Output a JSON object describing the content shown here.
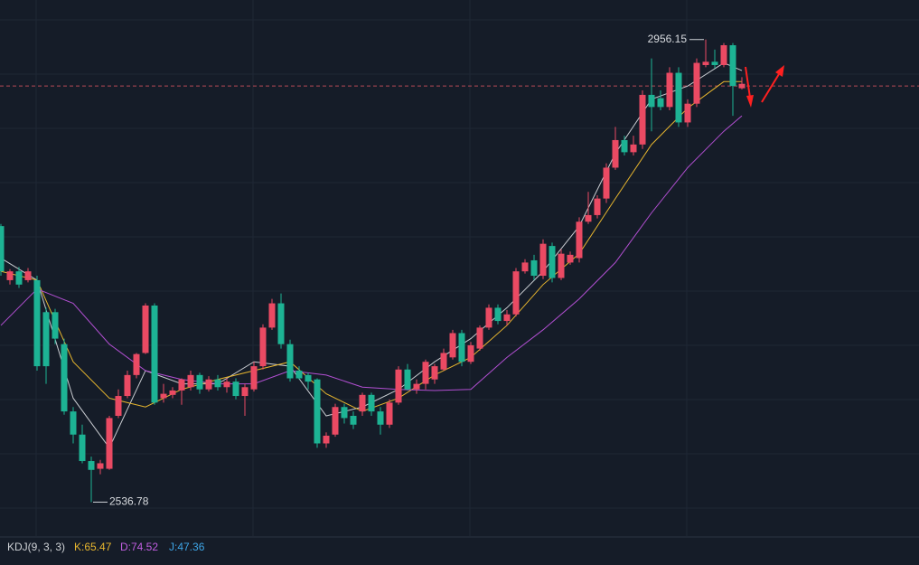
{
  "chart_data": {
    "type": "candlestick",
    "up_color": "#ea4a63",
    "down_color": "#1db394",
    "ylim": [
      2506,
      2992
    ],
    "open": [
      2787,
      2738,
      2746,
      2738,
      2738,
      2709,
      2709,
      2680,
      2619,
      2598,
      2574,
      2567,
      2567,
      2615,
      2633,
      2652,
      2672,
      2715,
      2631,
      2634,
      2638,
      2641,
      2652,
      2639,
      2648,
      2641,
      2646,
      2633,
      2639,
      2660,
      2695,
      2717,
      2680,
      2656,
      2652,
      2648,
      2590,
      2598,
      2623,
      2615,
      2619,
      2634,
      2619,
      2607,
      2627,
      2657,
      2639,
      2644,
      2648,
      2657,
      2668,
      2690,
      2664,
      2676,
      2695,
      2713,
      2701,
      2707,
      2746,
      2756,
      2742,
      2769,
      2740,
      2754,
      2758,
      2791,
      2797,
      2812,
      2840,
      2865,
      2854,
      2861,
      2906,
      2903,
      2895,
      2926,
      2881,
      2898,
      2933,
      2936,
      2933,
      2951,
      2912
    ],
    "high": [
      2789,
      2748,
      2750,
      2749,
      2742,
      2713,
      2712,
      2685,
      2623,
      2607,
      2578,
      2575,
      2615,
      2639,
      2656,
      2672,
      2717,
      2717,
      2644,
      2641,
      2649,
      2656,
      2654,
      2651,
      2652,
      2649,
      2649,
      2644,
      2664,
      2698,
      2721,
      2726,
      2684,
      2660,
      2654,
      2649,
      2600,
      2626,
      2626,
      2619,
      2636,
      2636,
      2623,
      2630,
      2660,
      2662,
      2648,
      2666,
      2662,
      2676,
      2693,
      2693,
      2682,
      2697,
      2716,
      2716,
      2711,
      2749,
      2757,
      2761,
      2775,
      2772,
      2766,
      2764,
      2795,
      2818,
      2815,
      2844,
      2877,
      2869,
      2869,
      2910,
      2939,
      2910,
      2931,
      2931,
      2902,
      2939,
      2956.15,
      2947,
      2953,
      2953,
      2922
    ],
    "low": [
      2742,
      2734,
      2731,
      2736,
      2656,
      2644,
      2680,
      2616,
      2590,
      2572,
      2536.78,
      2562,
      2566,
      2613,
      2631,
      2649,
      2671,
      2625,
      2627,
      2631,
      2625,
      2638,
      2635,
      2637,
      2638,
      2636,
      2630,
      2615,
      2637,
      2657,
      2693,
      2676,
      2646,
      2648,
      2639,
      2586,
      2586,
      2596,
      2608,
      2603,
      2615,
      2615,
      2598,
      2604,
      2625,
      2638,
      2635,
      2639,
      2644,
      2656,
      2666,
      2660,
      2662,
      2674,
      2693,
      2698,
      2697,
      2705,
      2744,
      2738,
      2739,
      2736,
      2738,
      2752,
      2754,
      2789,
      2794,
      2808,
      2838,
      2851,
      2851,
      2857,
      2873,
      2892,
      2892,
      2877,
      2877,
      2895,
      2931,
      2930,
      2931,
      2887,
      2911
    ],
    "close": [
      2746,
      2746,
      2734,
      2746,
      2660,
      2660,
      2685,
      2619,
      2598,
      2574,
      2566,
      2572,
      2613,
      2633,
      2652,
      2671,
      2715,
      2627,
      2635,
      2638,
      2648,
      2652,
      2639,
      2648,
      2641,
      2646,
      2633,
      2641,
      2660,
      2695,
      2717,
      2680,
      2649,
      2649,
      2646,
      2590,
      2597,
      2623,
      2613,
      2607,
      2634,
      2619,
      2607,
      2627,
      2657,
      2639,
      2644,
      2664,
      2660,
      2672,
      2690,
      2664,
      2679,
      2695,
      2713,
      2701,
      2707,
      2746,
      2754,
      2742,
      2771,
      2740,
      2762,
      2761,
      2791,
      2797,
      2812,
      2840,
      2865,
      2854,
      2861,
      2906,
      2895,
      2895,
      2926,
      2881,
      2898,
      2935,
      2936,
      2933,
      2951,
      2914,
      2916
    ],
    "lines": [
      {
        "color": "#c9ccd1",
        "x": [
          0,
          4,
          8,
          12,
          16,
          20,
          24,
          28,
          32,
          36,
          40,
          44,
          48,
          52,
          56,
          60,
          64,
          68,
          72,
          76,
          80,
          82
        ],
        "values": [
          2758,
          2738,
          2631,
          2586,
          2656,
          2644,
          2644,
          2664,
          2660,
          2615,
          2623,
          2639,
          2664,
          2685,
          2713,
          2746,
          2787,
          2853,
          2902,
          2914,
          2935,
          2928
        ]
      },
      {
        "color": "#e6b52e",
        "x": [
          0,
          4,
          8,
          12,
          16,
          20,
          24,
          28,
          32,
          36,
          40,
          44,
          48,
          52,
          56,
          60,
          64,
          68,
          72,
          76,
          80,
          82
        ],
        "values": [
          2746,
          2738,
          2664,
          2631,
          2623,
          2639,
          2648,
          2656,
          2664,
          2635,
          2619,
          2631,
          2652,
          2668,
          2697,
          2734,
          2762,
          2812,
          2861,
          2894,
          2918,
          2918
        ]
      },
      {
        "color": "#b24fd2",
        "x": [
          0,
          4,
          8,
          12,
          16,
          20,
          24,
          28,
          32,
          36,
          40,
          44,
          48,
          52,
          56,
          60,
          64,
          68,
          72,
          76,
          80,
          82
        ],
        "values": [
          2697,
          2730,
          2717,
          2680,
          2656,
          2648,
          2644,
          2644,
          2656,
          2652,
          2641,
          2639,
          2638,
          2639,
          2668,
          2693,
          2721,
          2754,
          2799,
          2840,
          2873,
          2887
        ]
      }
    ],
    "price_line": 2914,
    "indicator": {
      "title": "KDJ(9, 3, 3)",
      "k": "K:65.47",
      "d": "D:74.52",
      "j": "J:47.36",
      "k_color": "#e6b52e",
      "d_color": "#c05ee0",
      "j_color": "#3ea6e8"
    }
  }
}
